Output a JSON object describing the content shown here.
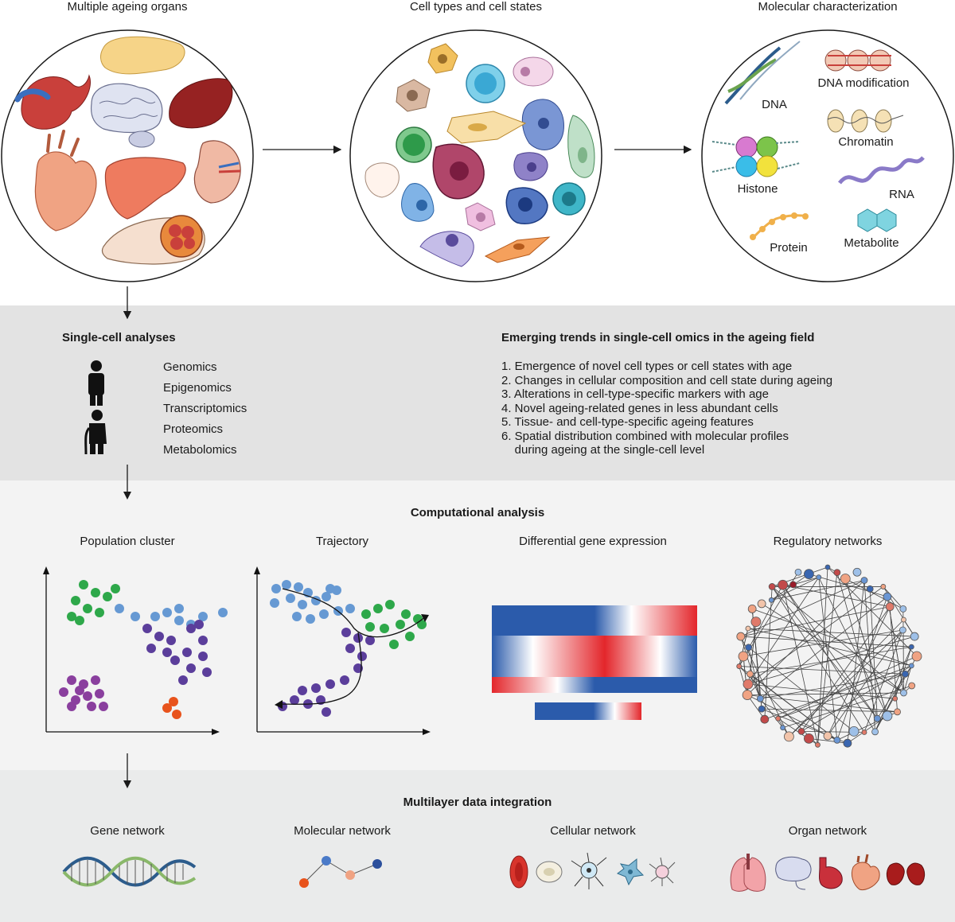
{
  "top": {
    "organs_title": "Multiple ageing organs",
    "cells_title": "Cell types and cell states",
    "molecular_title": "Molecular characterization",
    "molecular_labels": {
      "dna": "DNA",
      "dna_modification": "DNA modification",
      "chromatin": "Chromatin",
      "histone": "Histone",
      "rna": "RNA",
      "protein": "Protein",
      "metabolite": "Metabolite"
    }
  },
  "single_cell": {
    "title": "Single-cell analyses",
    "omics": [
      "Genomics",
      "Epigenomics",
      "Transcriptomics",
      "Proteomics",
      "Metabolomics"
    ]
  },
  "trends": {
    "title": "Emerging trends in single-cell omics in the ageing field",
    "items": [
      "1. Emergence of novel cell types or cell states with age",
      "2. Changes in cellular composition and cell state during ageing",
      "3. Alterations in cell-type-specific markers with age",
      "4. Novel ageing-related genes in less abundant cells",
      "5. Tissue- and cell-type-specific ageing features",
      "6. Spatial distribution combined with molecular profiles",
      "    during ageing at the single-cell level"
    ]
  },
  "computational": {
    "title": "Computational analysis",
    "panels": [
      "Population cluster",
      "Trajectory",
      "Differential gene expression",
      "Regulatory networks"
    ]
  },
  "integration": {
    "title": "Multilayer data integration",
    "panels": [
      "Gene network",
      "Molecular network",
      "Cellular network",
      "Organ network"
    ]
  },
  "colors": {
    "green": "#2ea84a",
    "blue": "#6699d3",
    "purple": "#5b3e9b",
    "magenta": "#8a3f9e",
    "orange": "#e8531c",
    "heat_blue": "#2b5bab",
    "heat_red": "#e3262b"
  }
}
